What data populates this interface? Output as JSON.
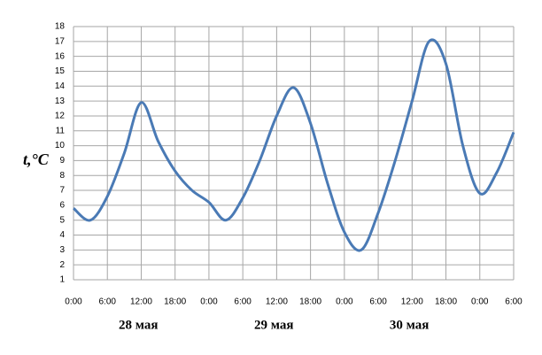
{
  "chart_data": {
    "type": "line",
    "y_label": "t,°C",
    "x": [
      0,
      3,
      6,
      9,
      12,
      15,
      18,
      21,
      24,
      27,
      30,
      33,
      36,
      39,
      42,
      45,
      48,
      51,
      54,
      57,
      60,
      63,
      66,
      69,
      72,
      75,
      78
    ],
    "series": [
      {
        "name": "t",
        "color": "#4a7ab5",
        "values": [
          5.8,
          5.0,
          6.6,
          9.5,
          12.9,
          10.3,
          8.3,
          7.0,
          6.2,
          5.0,
          6.5,
          9.0,
          12.0,
          13.9,
          11.5,
          7.5,
          4.2,
          3.0,
          5.5,
          9.0,
          13.0,
          17.0,
          15.5,
          10.0,
          6.8,
          8.2,
          10.9
        ]
      }
    ],
    "xlim": [
      0,
      78
    ],
    "xticks": [
      {
        "value": 0,
        "label": "0:00"
      },
      {
        "value": 6,
        "label": "6:00"
      },
      {
        "value": 12,
        "label": "12:00"
      },
      {
        "value": 18,
        "label": "18:00"
      },
      {
        "value": 24,
        "label": "0:00"
      },
      {
        "value": 30,
        "label": "6:00"
      },
      {
        "value": 36,
        "label": "12:00"
      },
      {
        "value": 42,
        "label": "18:00"
      },
      {
        "value": 48,
        "label": "0:00"
      },
      {
        "value": 54,
        "label": "6:00"
      },
      {
        "value": 60,
        "label": "12:00"
      },
      {
        "value": 66,
        "label": "18:00"
      },
      {
        "value": 72,
        "label": "0:00"
      },
      {
        "value": 78,
        "label": "6:00"
      }
    ],
    "ylim": [
      1,
      18
    ],
    "yticks": [
      1,
      2,
      3,
      4,
      5,
      6,
      7,
      8,
      9,
      10,
      11,
      12,
      13,
      14,
      15,
      16,
      17,
      18
    ],
    "date_labels": [
      "28 мая",
      "29 мая",
      "30 мая"
    ],
    "grid": true
  }
}
